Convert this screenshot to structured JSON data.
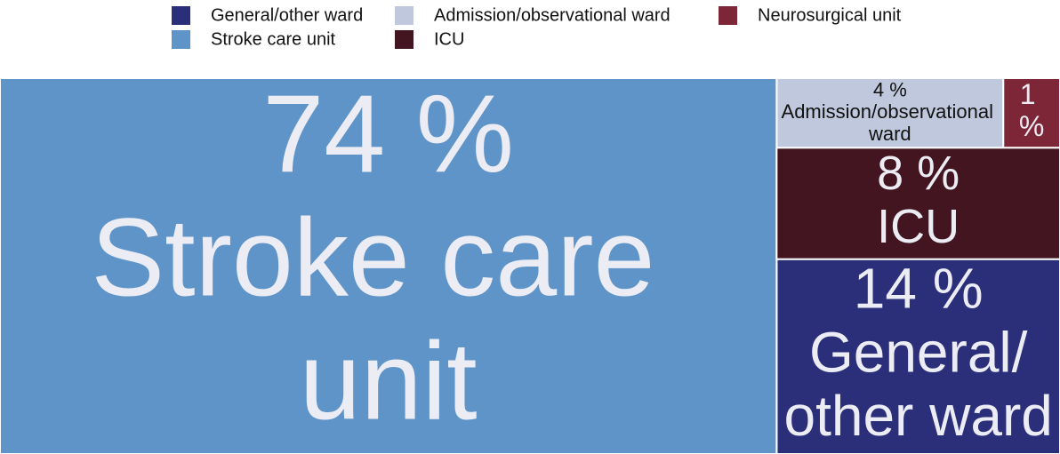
{
  "chart_data": {
    "type": "treemap",
    "series": [
      {
        "name": "General/other ward",
        "color": "#2b2f7a",
        "value": 14,
        "value_label": "14 %"
      },
      {
        "name": "Admission/observational ward",
        "color": "#bfc8dc",
        "value": 4,
        "value_label": "4 %"
      },
      {
        "name": "Neurosurgical unit",
        "color": "#7d2637",
        "value": 1,
        "value_label": "1 %"
      },
      {
        "name": "Stroke care unit",
        "color": "#5f94c8",
        "value": 74,
        "value_label": "74 %"
      },
      {
        "name": "ICU",
        "color": "#431520",
        "value": 8,
        "value_label": "8 %"
      }
    ],
    "legend": "top"
  }
}
